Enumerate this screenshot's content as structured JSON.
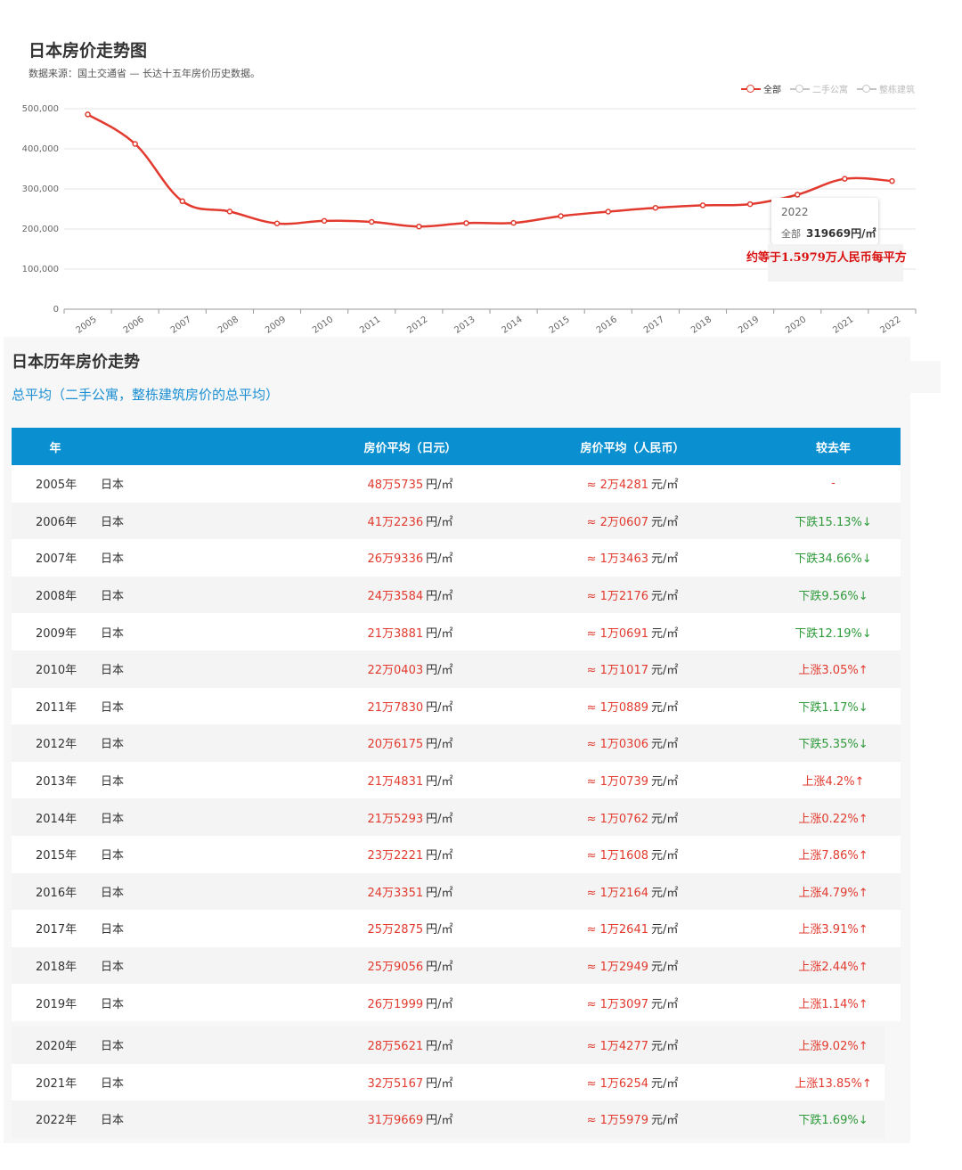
{
  "chart": {
    "title": "日本房价走势图",
    "subtitle": "数据来源：国土交通省 — 长达十五年房价历史数据。",
    "legend": [
      {
        "label": "全部",
        "color": "#e23a2e",
        "active": true
      },
      {
        "label": "二手公寓",
        "color": "#bbbbbb",
        "active": false
      },
      {
        "label": "整栋建筑",
        "color": "#bbbbbb",
        "active": false
      }
    ],
    "tooltip": {
      "year": "2022",
      "series": "全部",
      "value": "319669円/㎡"
    },
    "annotation": "约等于1.5979万人民币每平方"
  },
  "chart_data": {
    "type": "line",
    "title": "日本房价走势图",
    "x": [
      "2005",
      "2006",
      "2007",
      "2008",
      "2009",
      "2010",
      "2011",
      "2012",
      "2013",
      "2014",
      "2015",
      "2016",
      "2017",
      "2018",
      "2019",
      "2020",
      "2021",
      "2022"
    ],
    "series": [
      {
        "name": "全部",
        "color": "#e23a2e",
        "values": [
          485735,
          412236,
          269336,
          243584,
          213881,
          220403,
          217830,
          206175,
          214831,
          215293,
          232221,
          243351,
          252875,
          259056,
          261999,
          285621,
          325167,
          319669
        ]
      }
    ],
    "ylim": [
      0,
      500000
    ],
    "yticks": [
      0,
      100000,
      200000,
      300000,
      400000,
      500000
    ],
    "ytick_labels": [
      "0",
      "100,000",
      "200,000",
      "300,000",
      "400,000",
      "500,000"
    ],
    "grid": true,
    "legend_position": "top-right"
  },
  "table": {
    "title": "日本历年房价走势",
    "subtitle": "总平均（二手公寓，整栋建筑房价的总平均）",
    "headers": {
      "year": "年",
      "jpy": "房价平均（日元）",
      "cny": "房价平均（人民币）",
      "change": "较去年"
    },
    "jpy_unit": "円/㎡",
    "cny_unit": "元/㎡",
    "rows": [
      {
        "year": "2005年",
        "country": "日本",
        "jpy": "48万5735",
        "cny": "≈ 2万4281",
        "change": "-",
        "dir": "flat"
      },
      {
        "year": "2006年",
        "country": "日本",
        "jpy": "41万2236",
        "cny": "≈ 2万0607",
        "change": "下跌15.13%↓",
        "dir": "down"
      },
      {
        "year": "2007年",
        "country": "日本",
        "jpy": "26万9336",
        "cny": "≈ 1万3463",
        "change": "下跌34.66%↓",
        "dir": "down"
      },
      {
        "year": "2008年",
        "country": "日本",
        "jpy": "24万3584",
        "cny": "≈ 1万2176",
        "change": "下跌9.56%↓",
        "dir": "down"
      },
      {
        "year": "2009年",
        "country": "日本",
        "jpy": "21万3881",
        "cny": "≈ 1万0691",
        "change": "下跌12.19%↓",
        "dir": "down"
      },
      {
        "year": "2010年",
        "country": "日本",
        "jpy": "22万0403",
        "cny": "≈ 1万1017",
        "change": "上涨3.05%↑",
        "dir": "up"
      },
      {
        "year": "2011年",
        "country": "日本",
        "jpy": "21万7830",
        "cny": "≈ 1万0889",
        "change": "下跌1.17%↓",
        "dir": "down"
      },
      {
        "year": "2012年",
        "country": "日本",
        "jpy": "20万6175",
        "cny": "≈ 1万0306",
        "change": "下跌5.35%↓",
        "dir": "down"
      },
      {
        "year": "2013年",
        "country": "日本",
        "jpy": "21万4831",
        "cny": "≈ 1万0739",
        "change": "上涨4.2%↑",
        "dir": "up"
      },
      {
        "year": "2014年",
        "country": "日本",
        "jpy": "21万5293",
        "cny": "≈ 1万0762",
        "change": "上涨0.22%↑",
        "dir": "up"
      },
      {
        "year": "2015年",
        "country": "日本",
        "jpy": "23万2221",
        "cny": "≈ 1万1608",
        "change": "上涨7.86%↑",
        "dir": "up"
      },
      {
        "year": "2016年",
        "country": "日本",
        "jpy": "24万3351",
        "cny": "≈ 1万2164",
        "change": "上涨4.79%↑",
        "dir": "up"
      },
      {
        "year": "2017年",
        "country": "日本",
        "jpy": "25万2875",
        "cny": "≈ 1万2641",
        "change": "上涨3.91%↑",
        "dir": "up"
      },
      {
        "year": "2018年",
        "country": "日本",
        "jpy": "25万9056",
        "cny": "≈ 1万2949",
        "change": "上涨2.44%↑",
        "dir": "up"
      },
      {
        "year": "2019年",
        "country": "日本",
        "jpy": "26万1999",
        "cny": "≈ 1万3097",
        "change": "上涨1.14%↑",
        "dir": "up"
      },
      {
        "year": "2020年",
        "country": "日本",
        "jpy": "28万5621",
        "cny": "≈ 1万4277",
        "change": "上涨9.02%↑",
        "dir": "up"
      },
      {
        "year": "2021年",
        "country": "日本",
        "jpy": "32万5167",
        "cny": "≈ 1万6254",
        "change": "上涨13.85%↑",
        "dir": "up"
      },
      {
        "year": "2022年",
        "country": "日本",
        "jpy": "31万9669",
        "cny": "≈ 1万5979",
        "change": "下跌1.69%↓",
        "dir": "down"
      }
    ]
  }
}
